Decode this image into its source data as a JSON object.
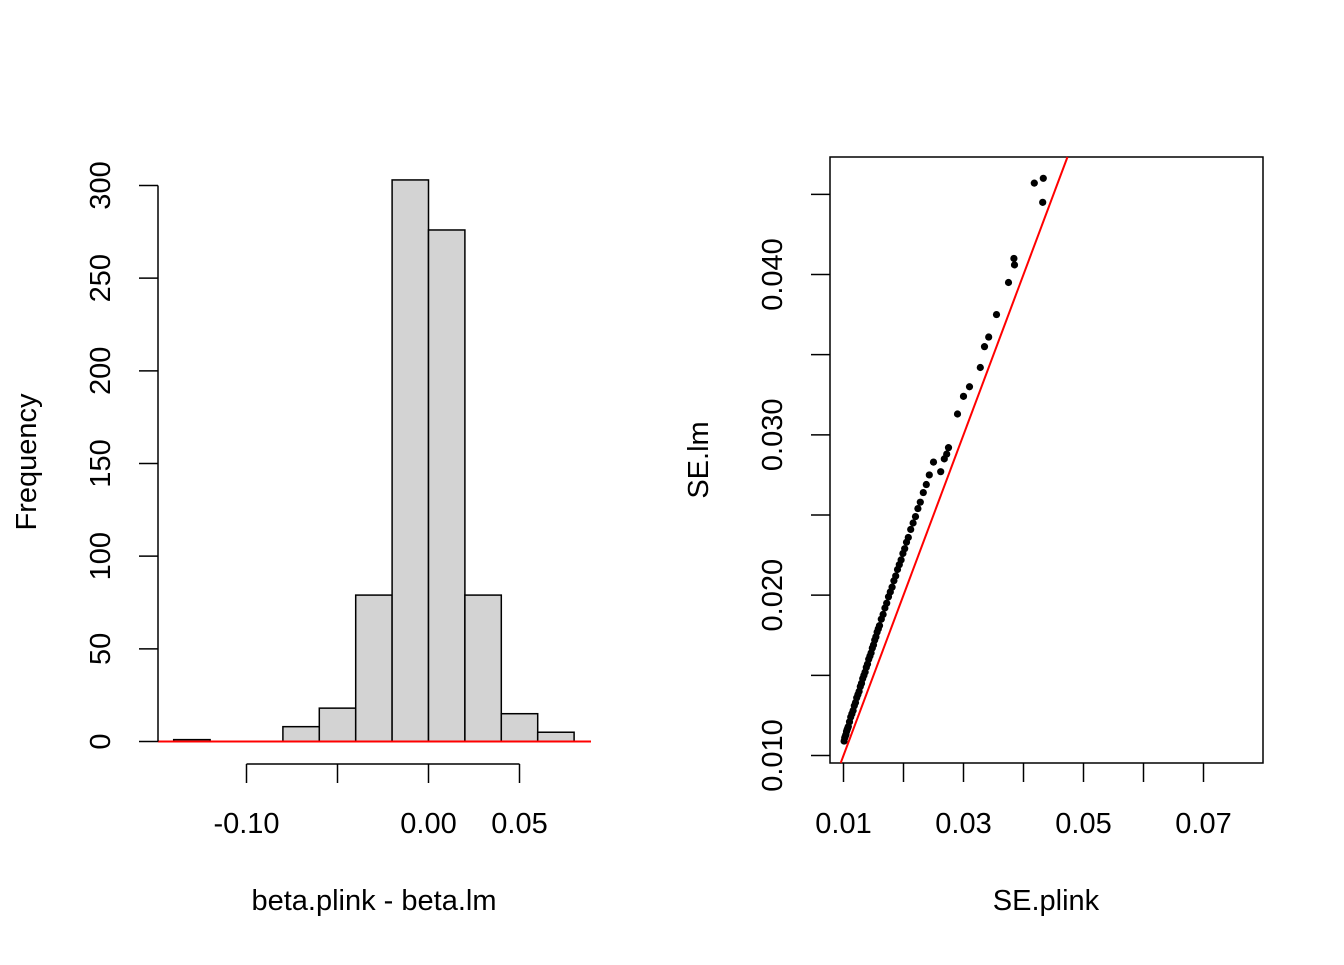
{
  "chart_data": [
    {
      "type": "bar",
      "subtype": "histogram",
      "title": "",
      "xlabel": "beta.plink - beta.lm",
      "ylabel": "Frequency",
      "bin_width": 0.02,
      "bins": [
        {
          "start": -0.14,
          "end": -0.12,
          "count": 1
        },
        {
          "start": -0.12,
          "end": -0.1,
          "count": 0
        },
        {
          "start": -0.1,
          "end": -0.08,
          "count": 0
        },
        {
          "start": -0.08,
          "end": -0.06,
          "count": 8
        },
        {
          "start": -0.06,
          "end": -0.04,
          "count": 18
        },
        {
          "start": -0.04,
          "end": -0.02,
          "count": 79
        },
        {
          "start": -0.02,
          "end": 0.0,
          "count": 303
        },
        {
          "start": 0.0,
          "end": 0.02,
          "count": 276
        },
        {
          "start": 0.02,
          "end": 0.04,
          "count": 79
        },
        {
          "start": 0.04,
          "end": 0.06,
          "count": 15
        },
        {
          "start": 0.06,
          "end": 0.08,
          "count": 5
        }
      ],
      "xlim": [
        -0.14,
        0.08
      ],
      "ylim": [
        0,
        300
      ],
      "x_ticks": [
        -0.1,
        -0.05,
        0.0,
        0.05
      ],
      "x_tick_labels": [
        "-0.10",
        "",
        "0.00",
        "0.05"
      ],
      "y_ticks": [
        0,
        50,
        100,
        150,
        200,
        250,
        300
      ],
      "y_tick_labels": [
        "0",
        "50",
        "100",
        "150",
        "200",
        "250",
        "300"
      ],
      "bar_fill": "#d3d3d3",
      "bar_stroke": "#000000",
      "reference_line": {
        "type": "horizontal",
        "y": 0,
        "color": "#ff0000"
      }
    },
    {
      "type": "scatter",
      "title": "",
      "xlabel": "SE.plink",
      "ylabel": "SE.lm",
      "xlim": [
        0.008,
        0.08
      ],
      "ylim": [
        0.0095,
        0.047
      ],
      "x_ticks": [
        0.01,
        0.02,
        0.03,
        0.04,
        0.05,
        0.06,
        0.07
      ],
      "x_tick_labels": [
        "0.01",
        "",
        "0.03",
        "",
        "0.05",
        "",
        "0.07"
      ],
      "y_ticks": [
        0.01,
        0.015,
        0.02,
        0.025,
        0.03,
        0.035,
        0.04,
        0.045
      ],
      "y_tick_labels": [
        "0.010",
        "",
        "0.020",
        "",
        "0.030",
        "",
        "0.040",
        ""
      ],
      "point_color": "#000000",
      "reference_line": {
        "type": "abline",
        "intercept": 0,
        "slope": 1,
        "color": "#ff0000"
      },
      "x": [
        0.0101,
        0.0102,
        0.0103,
        0.0104,
        0.0105,
        0.0106,
        0.0107,
        0.0108,
        0.011,
        0.0112,
        0.0114,
        0.0116,
        0.0118,
        0.012,
        0.0122,
        0.0124,
        0.0126,
        0.0128,
        0.013,
        0.0132,
        0.0134,
        0.0136,
        0.0138,
        0.014,
        0.0142,
        0.0144,
        0.0146,
        0.0148,
        0.015,
        0.0152,
        0.0154,
        0.0156,
        0.0158,
        0.016,
        0.0163,
        0.0166,
        0.0169,
        0.0172,
        0.0175,
        0.0178,
        0.0181,
        0.0184,
        0.0187,
        0.019,
        0.0193,
        0.0196,
        0.0199,
        0.0202,
        0.0205,
        0.0208,
        0.0212,
        0.0216,
        0.022,
        0.0224,
        0.0228,
        0.0233,
        0.0238,
        0.0243,
        0.025,
        0.0262,
        0.0268,
        0.0272,
        0.0275,
        0.029,
        0.03,
        0.031,
        0.0328,
        0.0335,
        0.0342,
        0.0355,
        0.0375,
        0.0385,
        0.0384,
        0.0418,
        0.0432,
        0.0433
      ],
      "y": [
        0.0109,
        0.0111,
        0.0112,
        0.0113,
        0.0115,
        0.0116,
        0.0117,
        0.0118,
        0.0121,
        0.0124,
        0.0126,
        0.0128,
        0.0131,
        0.0133,
        0.0136,
        0.0138,
        0.014,
        0.0143,
        0.0145,
        0.0148,
        0.015,
        0.0152,
        0.0155,
        0.0157,
        0.016,
        0.0162,
        0.0164,
        0.0167,
        0.0169,
        0.0172,
        0.0174,
        0.0177,
        0.0179,
        0.0181,
        0.0185,
        0.0188,
        0.0192,
        0.0195,
        0.0199,
        0.0202,
        0.0205,
        0.0209,
        0.0212,
        0.0216,
        0.0219,
        0.0222,
        0.0226,
        0.0229,
        0.0233,
        0.0236,
        0.0241,
        0.0245,
        0.0249,
        0.0254,
        0.0258,
        0.0264,
        0.0269,
        0.0275,
        0.0283,
        0.0277,
        0.0285,
        0.0288,
        0.0292,
        0.0313,
        0.0324,
        0.033,
        0.0342,
        0.0355,
        0.0361,
        0.0375,
        0.0395,
        0.0406,
        0.041,
        0.0457,
        0.0445,
        0.046
      ]
    }
  ]
}
